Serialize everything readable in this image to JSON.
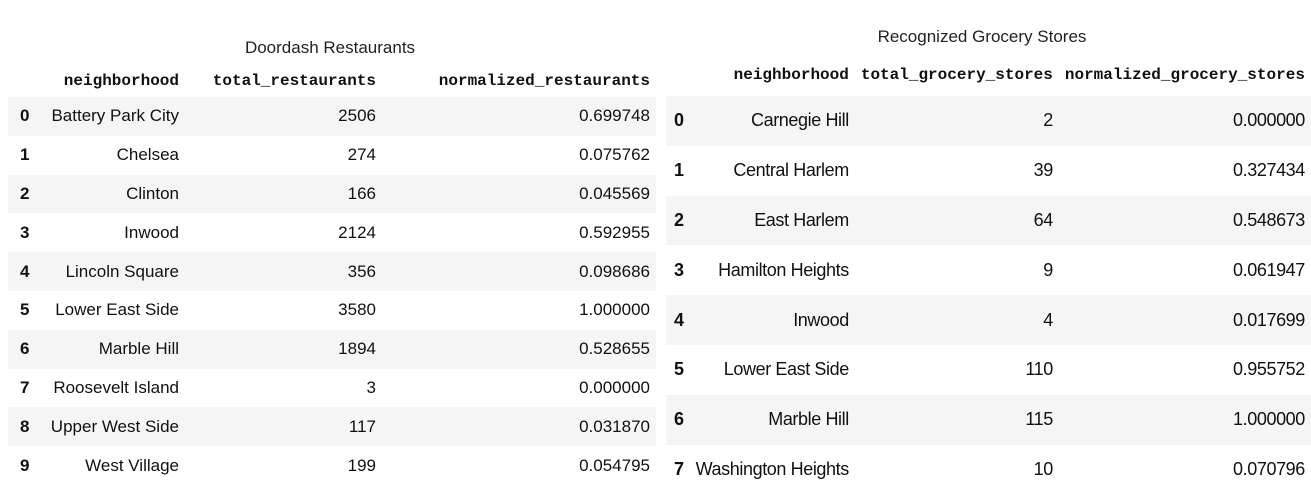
{
  "doordash": {
    "caption": "Doordash Restaurants",
    "columns": [
      "neighborhood",
      "total_restaurants",
      "normalized_restaurants"
    ],
    "rows": [
      {
        "idx": "0",
        "neighborhood": "Battery Park City",
        "total": "2506",
        "normalized": "0.699748"
      },
      {
        "idx": "1",
        "neighborhood": "Chelsea",
        "total": "274",
        "normalized": "0.075762"
      },
      {
        "idx": "2",
        "neighborhood": "Clinton",
        "total": "166",
        "normalized": "0.045569"
      },
      {
        "idx": "3",
        "neighborhood": "Inwood",
        "total": "2124",
        "normalized": "0.592955"
      },
      {
        "idx": "4",
        "neighborhood": "Lincoln Square",
        "total": "356",
        "normalized": "0.098686"
      },
      {
        "idx": "5",
        "neighborhood": "Lower East Side",
        "total": "3580",
        "normalized": "1.000000"
      },
      {
        "idx": "6",
        "neighborhood": "Marble Hill",
        "total": "1894",
        "normalized": "0.528655"
      },
      {
        "idx": "7",
        "neighborhood": "Roosevelt Island",
        "total": "3",
        "normalized": "0.000000"
      },
      {
        "idx": "8",
        "neighborhood": "Upper West Side",
        "total": "117",
        "normalized": "0.031870"
      },
      {
        "idx": "9",
        "neighborhood": "West Village",
        "total": "199",
        "normalized": "0.054795"
      }
    ]
  },
  "grocery": {
    "caption": "Recognized Grocery Stores",
    "columns": [
      "neighborhood",
      "total_grocery_stores",
      "normalized_grocery_stores"
    ],
    "rows": [
      {
        "idx": "0",
        "neighborhood": "Carnegie Hill",
        "total": "2",
        "normalized": "0.000000"
      },
      {
        "idx": "1",
        "neighborhood": "Central Harlem",
        "total": "39",
        "normalized": "0.327434"
      },
      {
        "idx": "2",
        "neighborhood": "East Harlem",
        "total": "64",
        "normalized": "0.548673"
      },
      {
        "idx": "3",
        "neighborhood": "Hamilton Heights",
        "total": "9",
        "normalized": "0.061947"
      },
      {
        "idx": "4",
        "neighborhood": "Inwood",
        "total": "4",
        "normalized": "0.017699"
      },
      {
        "idx": "5",
        "neighborhood": "Lower East Side",
        "total": "110",
        "normalized": "0.955752"
      },
      {
        "idx": "6",
        "neighborhood": "Marble Hill",
        "total": "115",
        "normalized": "1.000000"
      },
      {
        "idx": "7",
        "neighborhood": "Washington Heights",
        "total": "10",
        "normalized": "0.070796"
      }
    ]
  }
}
